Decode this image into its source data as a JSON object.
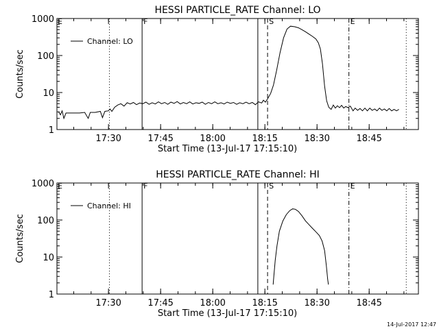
{
  "footer_timestamp": "14-Jul-2017 12:47",
  "chart_data": [
    {
      "type": "line",
      "title": "HESSI PARTICLE_RATE Channel: LO",
      "xlabel": "Start Time (13-Jul-17 17:15:10)",
      "ylabel": "Counts/sec",
      "y_scale": "log",
      "ylim": [
        1,
        1000
      ],
      "y_ticks": [
        1,
        10,
        100,
        1000
      ],
      "y_tick_labels": [
        "1",
        "10",
        "100",
        "1000"
      ],
      "xlim_minutes_after_start": [
        0,
        104
      ],
      "x_ticks": [
        {
          "label": "17:30",
          "minutes": 14.83
        },
        {
          "label": "17:45",
          "minutes": 29.83
        },
        {
          "label": "18:00",
          "minutes": 44.83
        },
        {
          "label": "18:15",
          "minutes": 59.83
        },
        {
          "label": "18:30",
          "minutes": 74.83
        },
        {
          "label": "18:45",
          "minutes": 89.83
        }
      ],
      "grid": false,
      "legend": {
        "placement": "top-left",
        "entries": [
          "Channel: LO"
        ]
      },
      "markers": [
        {
          "label": "",
          "style": "dotted",
          "minutes": 15.1
        },
        {
          "label": "F",
          "style": "solid",
          "minutes": 24.5
        },
        {
          "label": "",
          "style": "solid",
          "minutes": 57.8
        },
        {
          "label": "S",
          "style": "dashed",
          "minutes": 60.6
        },
        {
          "label": "E",
          "style": "dashdot",
          "minutes": 84.0
        },
        {
          "label": "",
          "style": "dotted",
          "minutes": 100.5
        }
      ],
      "series": [
        {
          "name": "Channel: LO",
          "points": [
            [
              0.5,
              3.0
            ],
            [
              1.0,
              2.5
            ],
            [
              1.5,
              3.2
            ],
            [
              2.0,
              2.0
            ],
            [
              2.6,
              2.8
            ],
            [
              3.5,
              2.8
            ],
            [
              5.0,
              2.8
            ],
            [
              6.5,
              2.8
            ],
            [
              8.0,
              2.9
            ],
            [
              9.0,
              2.0
            ],
            [
              9.6,
              2.9
            ],
            [
              11.0,
              2.9
            ],
            [
              12.5,
              3.1
            ],
            [
              13.1,
              2.1
            ],
            [
              13.8,
              3.1
            ],
            [
              14.8,
              3.2
            ],
            [
              15.3,
              3.6
            ],
            [
              15.8,
              3.1
            ],
            [
              16.6,
              4.0
            ],
            [
              17.5,
              4.6
            ],
            [
              18.4,
              5.0
            ],
            [
              19.3,
              4.3
            ],
            [
              20.2,
              5.3
            ],
            [
              21.1,
              4.9
            ],
            [
              22.0,
              5.4
            ],
            [
              22.9,
              4.7
            ],
            [
              23.8,
              5.2
            ],
            [
              24.7,
              5.0
            ],
            [
              25.6,
              5.5
            ],
            [
              26.5,
              4.8
            ],
            [
              27.4,
              5.3
            ],
            [
              28.3,
              4.9
            ],
            [
              29.2,
              5.6
            ],
            [
              30.1,
              5.0
            ],
            [
              31.0,
              5.4
            ],
            [
              31.9,
              4.8
            ],
            [
              32.8,
              5.5
            ],
            [
              33.7,
              5.1
            ],
            [
              34.6,
              5.7
            ],
            [
              35.5,
              4.9
            ],
            [
              36.4,
              5.4
            ],
            [
              37.3,
              5.0
            ],
            [
              38.2,
              5.6
            ],
            [
              39.1,
              4.9
            ],
            [
              40.0,
              5.3
            ],
            [
              40.9,
              5.1
            ],
            [
              41.8,
              5.5
            ],
            [
              42.7,
              4.8
            ],
            [
              43.6,
              5.4
            ],
            [
              44.5,
              5.0
            ],
            [
              45.4,
              5.6
            ],
            [
              46.3,
              5.0
            ],
            [
              47.2,
              5.3
            ],
            [
              48.1,
              4.9
            ],
            [
              49.0,
              5.5
            ],
            [
              49.9,
              5.1
            ],
            [
              50.8,
              5.4
            ],
            [
              51.7,
              4.8
            ],
            [
              52.6,
              5.3
            ],
            [
              53.5,
              5.0
            ],
            [
              54.4,
              5.5
            ],
            [
              55.3,
              5.0
            ],
            [
              56.2,
              5.4
            ],
            [
              57.1,
              4.7
            ],
            [
              58.0,
              5.6
            ],
            [
              58.9,
              5.2
            ],
            [
              59.4,
              6.2
            ],
            [
              60.0,
              5.5
            ],
            [
              60.7,
              7.0
            ],
            [
              61.5,
              9.5
            ],
            [
              62.3,
              16
            ],
            [
              63.2,
              40
            ],
            [
              64.2,
              120
            ],
            [
              65.2,
              300
            ],
            [
              66.2,
              520
            ],
            [
              67.2,
              620
            ],
            [
              68.4,
              600
            ],
            [
              69.5,
              560
            ],
            [
              70.5,
              500
            ],
            [
              71.5,
              440
            ],
            [
              72.5,
              380
            ],
            [
              73.5,
              330
            ],
            [
              74.5,
              280
            ],
            [
              75.2,
              220
            ],
            [
              75.8,
              150
            ],
            [
              76.4,
              60
            ],
            [
              77.0,
              15
            ],
            [
              77.6,
              6.0
            ],
            [
              78.2,
              4.0
            ],
            [
              78.9,
              3.5
            ],
            [
              79.5,
              4.6
            ],
            [
              80.1,
              3.8
            ],
            [
              80.7,
              4.4
            ],
            [
              81.3,
              3.9
            ],
            [
              81.9,
              4.5
            ],
            [
              82.5,
              3.8
            ],
            [
              83.1,
              4.2
            ],
            [
              83.7,
              3.9
            ],
            [
              84.4,
              4.3
            ],
            [
              85.2,
              3.2
            ],
            [
              85.8,
              3.8
            ],
            [
              86.5,
              3.3
            ],
            [
              87.2,
              3.7
            ],
            [
              87.9,
              3.2
            ],
            [
              88.6,
              3.8
            ],
            [
              89.3,
              3.2
            ],
            [
              90.0,
              3.8
            ],
            [
              90.7,
              3.3
            ],
            [
              91.4,
              3.6
            ],
            [
              92.1,
              3.2
            ],
            [
              92.8,
              3.8
            ],
            [
              93.5,
              3.3
            ],
            [
              94.2,
              3.6
            ],
            [
              94.9,
              3.2
            ],
            [
              95.6,
              3.7
            ],
            [
              96.3,
              3.2
            ],
            [
              97.0,
              3.5
            ],
            [
              97.7,
              3.2
            ],
            [
              98.4,
              3.5
            ]
          ]
        }
      ]
    },
    {
      "type": "line",
      "title": "HESSI PARTICLE_RATE Channel: HI",
      "xlabel": "Start Time (13-Jul-17 17:15:10)",
      "ylabel": "Counts/sec",
      "y_scale": "log",
      "ylim": [
        1,
        1000
      ],
      "y_ticks": [
        1,
        10,
        100,
        1000
      ],
      "y_tick_labels": [
        "1",
        "10",
        "100",
        "1000"
      ],
      "xlim_minutes_after_start": [
        0,
        104
      ],
      "x_ticks": [
        {
          "label": "17:30",
          "minutes": 14.83
        },
        {
          "label": "17:45",
          "minutes": 29.83
        },
        {
          "label": "18:00",
          "minutes": 44.83
        },
        {
          "label": "18:15",
          "minutes": 59.83
        },
        {
          "label": "18:30",
          "minutes": 74.83
        },
        {
          "label": "18:45",
          "minutes": 89.83
        }
      ],
      "grid": false,
      "legend": {
        "placement": "top-left",
        "entries": [
          "Channel: HI"
        ]
      },
      "markers": [
        {
          "label": "",
          "style": "dotted",
          "minutes": 15.1
        },
        {
          "label": "F",
          "style": "solid",
          "minutes": 24.5
        },
        {
          "label": "",
          "style": "solid",
          "minutes": 57.8
        },
        {
          "label": "S",
          "style": "dashed",
          "minutes": 60.6
        },
        {
          "label": "E",
          "style": "dashdot",
          "minutes": 84.0
        },
        {
          "label": "",
          "style": "dotted",
          "minutes": 100.5
        }
      ],
      "series": [
        {
          "name": "Channel: HI",
          "points": [
            [
              62.2,
              1.8
            ],
            [
              62.4,
              3.0
            ],
            [
              62.8,
              8.0
            ],
            [
              63.3,
              20
            ],
            [
              64.0,
              50
            ],
            [
              65.0,
              95
            ],
            [
              66.0,
              140
            ],
            [
              67.0,
              180
            ],
            [
              67.8,
              200
            ],
            [
              68.6,
              195
            ],
            [
              69.5,
              170
            ],
            [
              70.5,
              130
            ],
            [
              71.5,
              95
            ],
            [
              72.5,
              75
            ],
            [
              73.5,
              60
            ],
            [
              74.5,
              48
            ],
            [
              75.5,
              38
            ],
            [
              76.3,
              27
            ],
            [
              77.0,
              15
            ],
            [
              77.5,
              6
            ],
            [
              77.9,
              2.5
            ],
            [
              78.1,
              1.8
            ]
          ]
        }
      ]
    }
  ]
}
